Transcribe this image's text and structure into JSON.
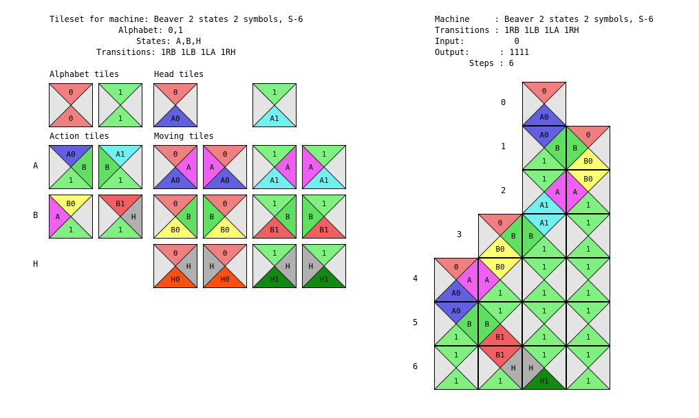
{
  "colors": {
    "0": "#f08080",
    "1": "#80f080",
    "A0": "#6060e0",
    "A1": "#70f0f0",
    "A": "#f060f0",
    "B": "#60e060",
    "B0": "#ffff70",
    "B1": "#f06060",
    "H": "#b0b0b0",
    "H0": "#ff5010",
    "H1": "#108a10",
    "": "#e4e4e4"
  },
  "header_left": {
    "line1": "Tileset for machine: Beaver 2 states 2 symbols, S-6",
    "line2": "Alphabet: 0,1",
    "line3": "States: A,B,H",
    "line4": "Transitions: 1RB 1LB 1LA 1RH"
  },
  "header_right": {
    "line1": "Machine     : Beaver 2 states 2 symbols, S-6",
    "line2": "Transitions : 1RB 1LB 1LA 1RH",
    "line3": "Input:          0",
    "line4": "Output:      : 1111",
    "line5": "Steps : 6"
  },
  "sections": {
    "alphabet": "Alphabet tiles",
    "head": "Head tiles",
    "action": "Action tiles",
    "moving": "Moving tiles"
  },
  "row_labels": [
    "A",
    "B",
    "H"
  ],
  "step_labels": [
    "0",
    "1",
    "2",
    "3",
    "4",
    "5",
    "6"
  ],
  "tiles": [
    {
      "id": "alpha-0",
      "t": "0",
      "r": "",
      "b": "0",
      "l": ""
    },
    {
      "id": "alpha-1",
      "t": "1",
      "r": "",
      "b": "1",
      "l": ""
    },
    {
      "id": "head-a0",
      "t": "0",
      "r": "",
      "b": "A0",
      "l": ""
    },
    {
      "id": "head-a1",
      "t": "1",
      "r": "",
      "b": "A1",
      "l": ""
    },
    {
      "id": "action-a0",
      "t": "A0",
      "r": "B",
      "b": "1",
      "l": ""
    },
    {
      "id": "action-a1",
      "t": "A1",
      "r": "",
      "b": "1",
      "l": "B"
    },
    {
      "id": "action-b0",
      "t": "B0",
      "r": "",
      "b": "1",
      "l": "A"
    },
    {
      "id": "action-b1",
      "t": "B1",
      "r": "H",
      "b": "1",
      "l": ""
    },
    {
      "id": "move-a-1",
      "t": "0",
      "r": "A",
      "b": "A0",
      "l": ""
    },
    {
      "id": "move-a-2",
      "t": "0",
      "r": "",
      "b": "A0",
      "l": "A"
    },
    {
      "id": "move-a-3",
      "t": "1",
      "r": "A",
      "b": "A1",
      "l": ""
    },
    {
      "id": "move-a-4",
      "t": "1",
      "r": "",
      "b": "A1",
      "l": "A"
    },
    {
      "id": "move-b-1",
      "t": "0",
      "r": "B",
      "b": "B0",
      "l": ""
    },
    {
      "id": "move-b-2",
      "t": "0",
      "r": "",
      "b": "B0",
      "l": "B"
    },
    {
      "id": "move-b-3",
      "t": "1",
      "r": "B",
      "b": "B1",
      "l": ""
    },
    {
      "id": "move-b-4",
      "t": "1",
      "r": "",
      "b": "B1",
      "l": "B"
    },
    {
      "id": "move-h-1",
      "t": "0",
      "r": "H",
      "b": "H0",
      "l": ""
    },
    {
      "id": "move-h-2",
      "t": "0",
      "r": "",
      "b": "H0",
      "l": "H"
    },
    {
      "id": "move-h-3",
      "t": "1",
      "r": "H",
      "b": "H1",
      "l": ""
    },
    {
      "id": "move-h-4",
      "t": "1",
      "r": "",
      "b": "H1",
      "l": "H"
    }
  ],
  "tiling": [
    {
      "id": "g-0-2",
      "row": 0,
      "col": 2,
      "t": "0",
      "r": "",
      "b": "A0",
      "l": ""
    },
    {
      "id": "g-1-2",
      "row": 1,
      "col": 2,
      "t": "A0",
      "r": "B",
      "b": "1",
      "l": ""
    },
    {
      "id": "g-1-3",
      "row": 1,
      "col": 3,
      "t": "0",
      "r": "",
      "b": "B0",
      "l": "B"
    },
    {
      "id": "g-2-2",
      "row": 2,
      "col": 2,
      "t": "1",
      "r": "A",
      "b": "A1",
      "l": ""
    },
    {
      "id": "g-2-3",
      "row": 2,
      "col": 3,
      "t": "B0",
      "r": "",
      "b": "1",
      "l": "A"
    },
    {
      "id": "g-3-1",
      "row": 3,
      "col": 1,
      "t": "0",
      "r": "B",
      "b": "B0",
      "l": ""
    },
    {
      "id": "g-3-2",
      "row": 3,
      "col": 2,
      "t": "A1",
      "r": "",
      "b": "1",
      "l": "B"
    },
    {
      "id": "g-3-3",
      "row": 3,
      "col": 3,
      "t": "1",
      "r": "",
      "b": "1",
      "l": ""
    },
    {
      "id": "g-4-0",
      "row": 4,
      "col": 0,
      "t": "0",
      "r": "A",
      "b": "A0",
      "l": ""
    },
    {
      "id": "g-4-1",
      "row": 4,
      "col": 1,
      "t": "B0",
      "r": "",
      "b": "1",
      "l": "A"
    },
    {
      "id": "g-4-2",
      "row": 4,
      "col": 2,
      "t": "1",
      "r": "",
      "b": "1",
      "l": ""
    },
    {
      "id": "g-4-3",
      "row": 4,
      "col": 3,
      "t": "1",
      "r": "",
      "b": "1",
      "l": ""
    },
    {
      "id": "g-5-0",
      "row": 5,
      "col": 0,
      "t": "A0",
      "r": "B",
      "b": "1",
      "l": ""
    },
    {
      "id": "g-5-1",
      "row": 5,
      "col": 1,
      "t": "1",
      "r": "",
      "b": "B1",
      "l": "B"
    },
    {
      "id": "g-5-2",
      "row": 5,
      "col": 2,
      "t": "1",
      "r": "",
      "b": "1",
      "l": ""
    },
    {
      "id": "g-5-3",
      "row": 5,
      "col": 3,
      "t": "1",
      "r": "",
      "b": "1",
      "l": ""
    },
    {
      "id": "g-6-0",
      "row": 6,
      "col": 0,
      "t": "1",
      "r": "",
      "b": "1",
      "l": ""
    },
    {
      "id": "g-6-1",
      "row": 6,
      "col": 1,
      "t": "B1",
      "r": "H",
      "b": "1",
      "l": ""
    },
    {
      "id": "g-6-2",
      "row": 6,
      "col": 2,
      "t": "1",
      "r": "",
      "b": "H1",
      "l": "H"
    },
    {
      "id": "g-6-3",
      "row": 6,
      "col": 3,
      "t": "1",
      "r": "",
      "b": "1",
      "l": ""
    }
  ]
}
